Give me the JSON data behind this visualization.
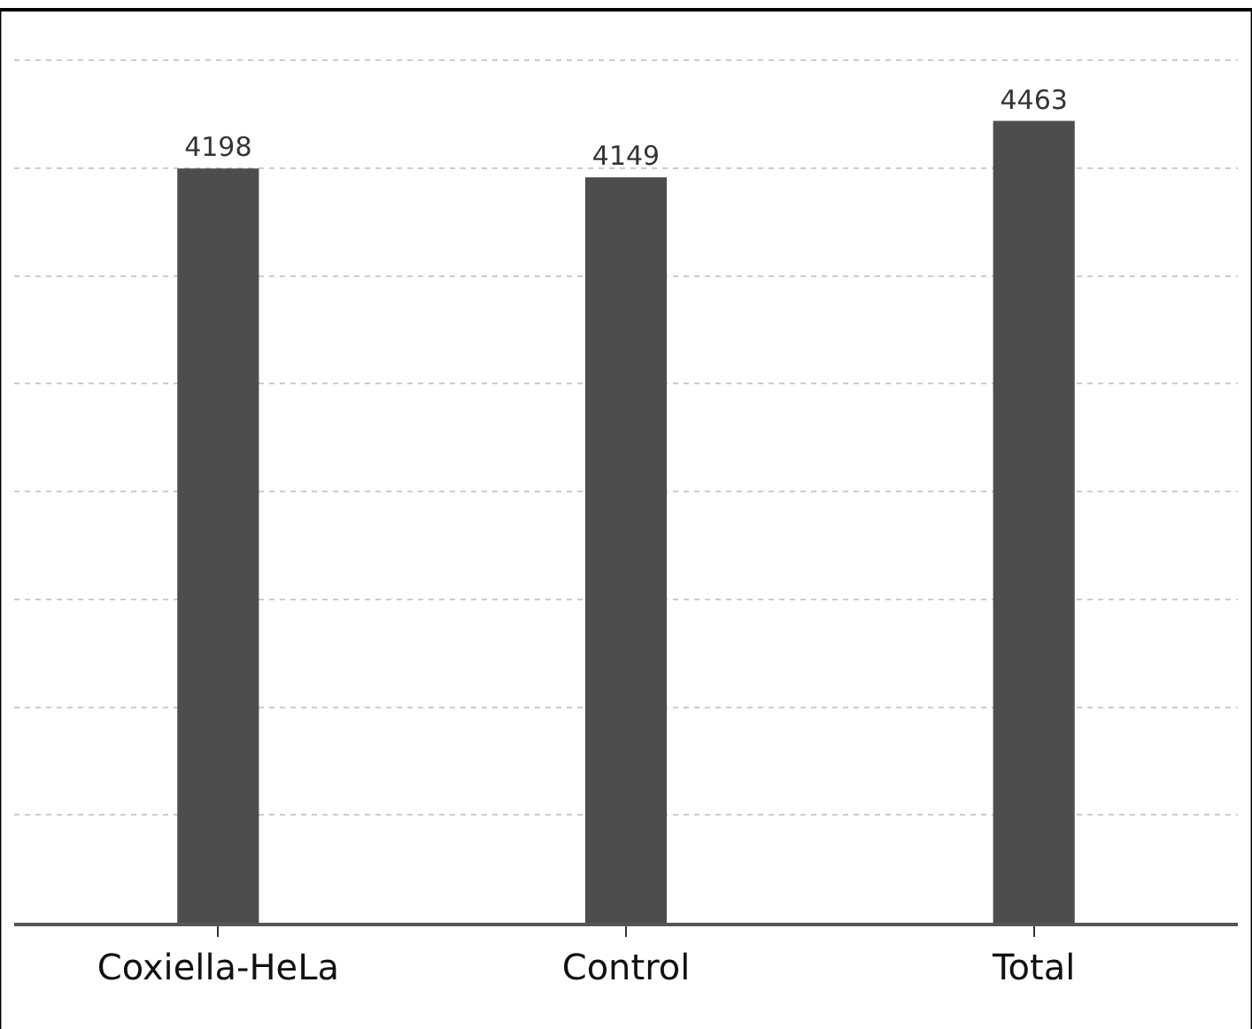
{
  "chart_data": {
    "type": "bar",
    "categories": [
      "Coxiella-HeLa",
      "Control",
      "Total"
    ],
    "values": [
      4198,
      4149,
      4463
    ],
    "color": "#4d4d4d",
    "data_labels": true,
    "ylim": [
      0,
      4840
    ],
    "yticks": [
      {
        "value": 600,
        "label": null
      },
      {
        "value": 1200,
        "label": null
      },
      {
        "value": 1800,
        "label": null
      },
      {
        "value": 2400,
        "label": null
      },
      {
        "value": 3000,
        "label": null
      },
      {
        "value": 3600,
        "label": null
      },
      {
        "value": 4200,
        "label": null
      },
      {
        "value": 4800,
        "label": null
      }
    ],
    "tick_labels": "x",
    "grid": "y",
    "legend": false
  }
}
